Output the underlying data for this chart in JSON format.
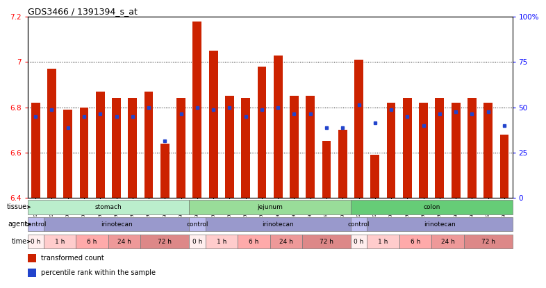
{
  "title": "GDS3466 / 1391394_s_at",
  "samples": [
    "GSM297524",
    "GSM297525",
    "GSM297526",
    "GSM297527",
    "GSM297528",
    "GSM297529",
    "GSM297530",
    "GSM297531",
    "GSM297532",
    "GSM297533",
    "GSM297534",
    "GSM297535",
    "GSM297536",
    "GSM297537",
    "GSM297538",
    "GSM297539",
    "GSM297540",
    "GSM297541",
    "GSM297542",
    "GSM297543",
    "GSM297544",
    "GSM297545",
    "GSM297546",
    "GSM297547",
    "GSM297548",
    "GSM297549",
    "GSM297550",
    "GSM297551",
    "GSM297552",
    "GSM297553"
  ],
  "bar_values": [
    6.82,
    6.97,
    6.79,
    6.8,
    6.87,
    6.84,
    6.84,
    6.87,
    6.64,
    6.84,
    7.18,
    7.05,
    6.85,
    6.84,
    6.98,
    7.03,
    6.85,
    6.85,
    6.65,
    6.7,
    7.01,
    6.59,
    6.82,
    6.84,
    6.82,
    6.84,
    6.82,
    6.84,
    6.82,
    6.68
  ],
  "percentile_values": [
    6.76,
    6.79,
    6.71,
    6.76,
    6.77,
    6.76,
    6.76,
    6.8,
    6.65,
    6.77,
    6.8,
    6.79,
    6.8,
    6.76,
    6.79,
    6.8,
    6.77,
    6.77,
    6.71,
    6.71,
    6.81,
    6.73,
    6.79,
    6.76,
    6.72,
    6.77,
    6.78,
    6.77,
    6.78,
    6.72
  ],
  "ymin": 6.4,
  "ymax": 7.2,
  "yticks": [
    6.4,
    6.6,
    6.8,
    7.0,
    7.2
  ],
  "ytick_labels": [
    "6.4",
    "6.6",
    "6.8",
    "7",
    "7.2"
  ],
  "right_yticks": [
    0,
    25,
    50,
    75,
    100
  ],
  "right_ytick_labels": [
    "0",
    "25",
    "50",
    "75",
    "100%"
  ],
  "bar_color": "#cc2200",
  "percentile_color": "#2244cc",
  "tissue_groups": [
    {
      "label": "stomach",
      "start": 0,
      "end": 9,
      "color": "#bbeecc"
    },
    {
      "label": "jejunum",
      "start": 10,
      "end": 19,
      "color": "#99dd99"
    },
    {
      "label": "colon",
      "start": 20,
      "end": 29,
      "color": "#66cc77"
    }
  ],
  "agent_groups": [
    {
      "label": "control",
      "start": 0,
      "end": 0,
      "color": "#bbbbee"
    },
    {
      "label": "irinotecan",
      "start": 1,
      "end": 9,
      "color": "#9999cc"
    },
    {
      "label": "control",
      "start": 10,
      "end": 10,
      "color": "#bbbbee"
    },
    {
      "label": "irinotecan",
      "start": 11,
      "end": 19,
      "color": "#9999cc"
    },
    {
      "label": "control",
      "start": 20,
      "end": 20,
      "color": "#bbbbee"
    },
    {
      "label": "irinotecan",
      "start": 21,
      "end": 29,
      "color": "#9999cc"
    }
  ],
  "time_groups": [
    {
      "label": "0 h",
      "start": 0,
      "end": 0,
      "color": "#ffeeee"
    },
    {
      "label": "1 h",
      "start": 1,
      "end": 2,
      "color": "#ffcccc"
    },
    {
      "label": "6 h",
      "start": 3,
      "end": 4,
      "color": "#ffaaaa"
    },
    {
      "label": "24 h",
      "start": 5,
      "end": 6,
      "color": "#ee9999"
    },
    {
      "label": "72 h",
      "start": 7,
      "end": 9,
      "color": "#dd8888"
    },
    {
      "label": "0 h",
      "start": 10,
      "end": 10,
      "color": "#ffeeee"
    },
    {
      "label": "1 h",
      "start": 11,
      "end": 12,
      "color": "#ffcccc"
    },
    {
      "label": "6 h",
      "start": 13,
      "end": 14,
      "color": "#ffaaaa"
    },
    {
      "label": "24 h",
      "start": 15,
      "end": 16,
      "color": "#ee9999"
    },
    {
      "label": "72 h",
      "start": 17,
      "end": 19,
      "color": "#dd8888"
    },
    {
      "label": "0 h",
      "start": 20,
      "end": 20,
      "color": "#ffeeee"
    },
    {
      "label": "1 h",
      "start": 21,
      "end": 22,
      "color": "#ffcccc"
    },
    {
      "label": "6 h",
      "start": 23,
      "end": 24,
      "color": "#ffaaaa"
    },
    {
      "label": "24 h",
      "start": 25,
      "end": 26,
      "color": "#ee9999"
    },
    {
      "label": "72 h",
      "start": 27,
      "end": 29,
      "color": "#dd8888"
    }
  ]
}
